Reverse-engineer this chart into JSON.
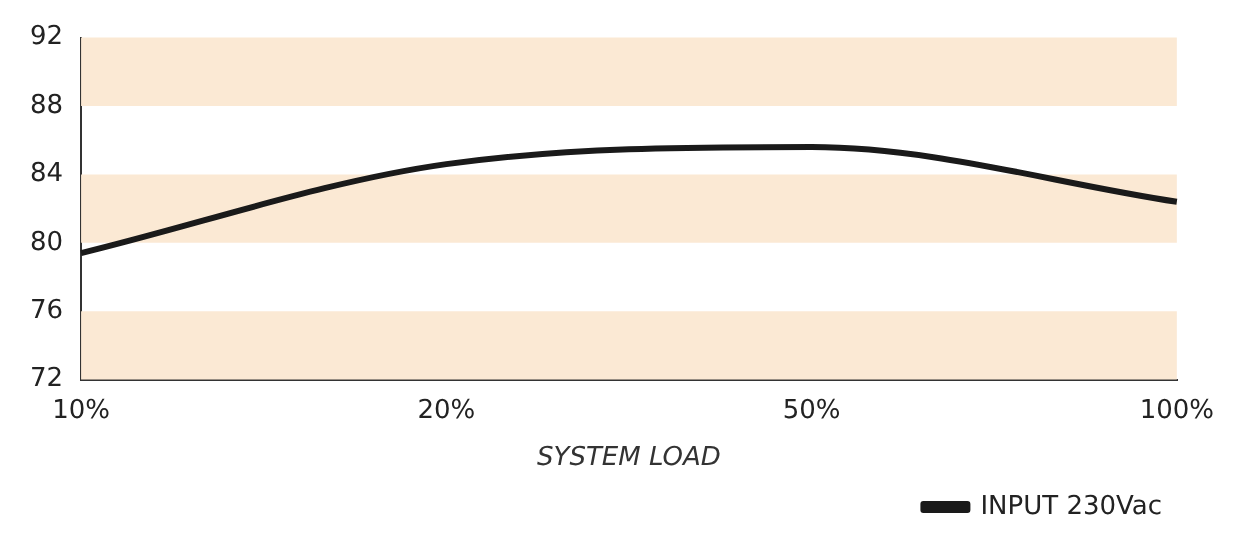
{
  "chart_data": {
    "type": "line",
    "xlabel": "SYSTEM LOAD",
    "categories": [
      "10%",
      "20%",
      "50%",
      "100%"
    ],
    "series": [
      {
        "name": "INPUT 230Vac",
        "color": "#1a1a1a",
        "values": [
          79.4,
          84.6,
          85.6,
          82.4
        ]
      }
    ],
    "ylim": [
      72,
      92
    ],
    "yticks": [
      72,
      76,
      80,
      84,
      88,
      92
    ],
    "grid": false,
    "legend": "bottom right",
    "marker": "none",
    "line_style": "solid",
    "bands": [
      {
        "axis": "y",
        "from": 72,
        "to": 76,
        "color": "#fbe9d4"
      },
      {
        "axis": "y",
        "from": 80,
        "to": 84,
        "color": "#fbe9d4"
      },
      {
        "axis": "y",
        "from": 88,
        "to": 92,
        "color": "#fbe9d4"
      }
    ]
  }
}
